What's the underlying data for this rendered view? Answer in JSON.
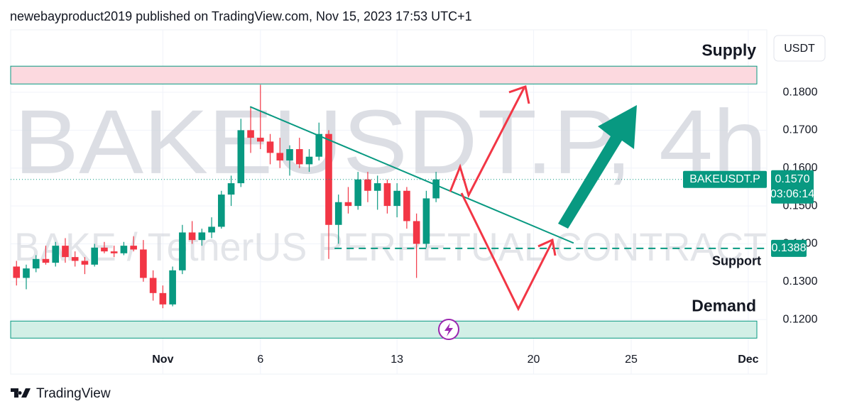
{
  "header": "newebayproduct2019 published on TradingView.com, Nov 15, 2023 17:53 UTC+1",
  "footer": "TradingView",
  "chart_data": {
    "type": "candlestick",
    "watermark": {
      "symbol": "BAKEUSDT.P, 4h",
      "description": "BAKE / TetherUS PERPETUAL CONTRACT"
    },
    "currency": "USDT",
    "symbol": "BAKEUSDT.P",
    "countdown": "03:06:14",
    "last_price": {
      "value": 0.157,
      "label": "0.1570"
    },
    "up_color": "#089981",
    "down_color": "#f23645",
    "x": [
      -6.5,
      -6,
      -5.5,
      -5,
      -4.5,
      -4,
      -3.5,
      -3,
      -2.5,
      -2,
      -1.5,
      -1,
      -0.5,
      0,
      0.5,
      1,
      1.5,
      2,
      2.5,
      3,
      3.5,
      4,
      4.5,
      5,
      5.5,
      6,
      6.5,
      7,
      7.5,
      8,
      8.5,
      9,
      9.5,
      10,
      10.5,
      11,
      11.5,
      12,
      12.5,
      13,
      13.5,
      14,
      14.5,
      15
    ],
    "open": [
      0.134,
      0.131,
      0.1335,
      0.136,
      0.135,
      0.1395,
      0.1365,
      0.1355,
      0.1345,
      0.139,
      0.138,
      0.1375,
      0.1395,
      0.1385,
      0.131,
      0.127,
      0.124,
      0.133,
      0.143,
      0.141,
      0.143,
      0.1445,
      0.153,
      0.156,
      0.17,
      0.168,
      0.167,
      0.164,
      0.162,
      0.165,
      0.161,
      0.163,
      0.169,
      0.145,
      0.151,
      0.15,
      0.157,
      0.154,
      0.156,
      0.15,
      0.154,
      0.146,
      0.14,
      0.152
    ],
    "high": [
      0.1355,
      0.1345,
      0.137,
      0.1395,
      0.1405,
      0.1415,
      0.138,
      0.1365,
      0.14,
      0.1405,
      0.1395,
      0.1405,
      0.142,
      0.141,
      0.133,
      0.129,
      0.134,
      0.145,
      0.146,
      0.144,
      0.147,
      0.154,
      0.158,
      0.173,
      0.176,
      0.182,
      0.169,
      0.168,
      0.166,
      0.168,
      0.165,
      0.172,
      0.17,
      0.153,
      0.155,
      0.159,
      0.159,
      0.158,
      0.157,
      0.156,
      0.155,
      0.148,
      0.154,
      0.159
    ],
    "low": [
      0.129,
      0.128,
      0.1325,
      0.1345,
      0.134,
      0.135,
      0.134,
      0.132,
      0.134,
      0.1375,
      0.1365,
      0.137,
      0.138,
      0.13,
      0.125,
      0.123,
      0.1235,
      0.132,
      0.14,
      0.1395,
      0.1415,
      0.144,
      0.15,
      0.155,
      0.164,
      0.165,
      0.161,
      0.16,
      0.158,
      0.16,
      0.159,
      0.162,
      0.136,
      0.14,
      0.148,
      0.149,
      0.151,
      0.149,
      0.148,
      0.147,
      0.144,
      0.131,
      0.139,
      0.151
    ],
    "close": [
      0.131,
      0.1335,
      0.136,
      0.135,
      0.1395,
      0.1365,
      0.1355,
      0.1345,
      0.139,
      0.138,
      0.1375,
      0.1395,
      0.1385,
      0.131,
      0.127,
      0.124,
      0.133,
      0.143,
      0.141,
      0.143,
      0.1445,
      0.153,
      0.156,
      0.17,
      0.168,
      0.167,
      0.164,
      0.162,
      0.165,
      0.161,
      0.163,
      0.169,
      0.145,
      0.151,
      0.15,
      0.157,
      0.154,
      0.156,
      0.15,
      0.154,
      0.146,
      0.14,
      0.152,
      0.157
    ],
    "xlim": [
      -6.8,
      31.95
    ],
    "ylim": [
      0.1056,
      0.1965
    ],
    "xticks": [
      {
        "value": 1,
        "label": "Nov"
      },
      6,
      13,
      20,
      25,
      {
        "value": 31,
        "label": "Dec"
      }
    ],
    "yticks": [
      {
        "value": 0.12,
        "label": "0.1200"
      },
      {
        "value": 0.13,
        "label": "0.1300"
      },
      {
        "value": 0.14,
        "label": "0.1400"
      },
      {
        "value": 0.15,
        "label": "0.1500"
      },
      {
        "value": 0.16,
        "label": "0.1600"
      },
      {
        "value": 0.17,
        "label": "0.1700"
      },
      {
        "value": 0.18,
        "label": "0.1800"
      }
    ],
    "grid": true,
    "supply_zone": {
      "label": "Supply",
      "range": [
        0.1822,
        0.1869
      ]
    },
    "demand_zone": {
      "label": "Demand",
      "range": [
        0.1151,
        0.1196
      ]
    },
    "support": {
      "label": "Support",
      "value": 0.1388,
      "start_x": 9.8
    },
    "trendline": {
      "x": [
        5.47,
        22.05
      ],
      "y": [
        0.1762,
        0.1402
      ]
    }
  }
}
